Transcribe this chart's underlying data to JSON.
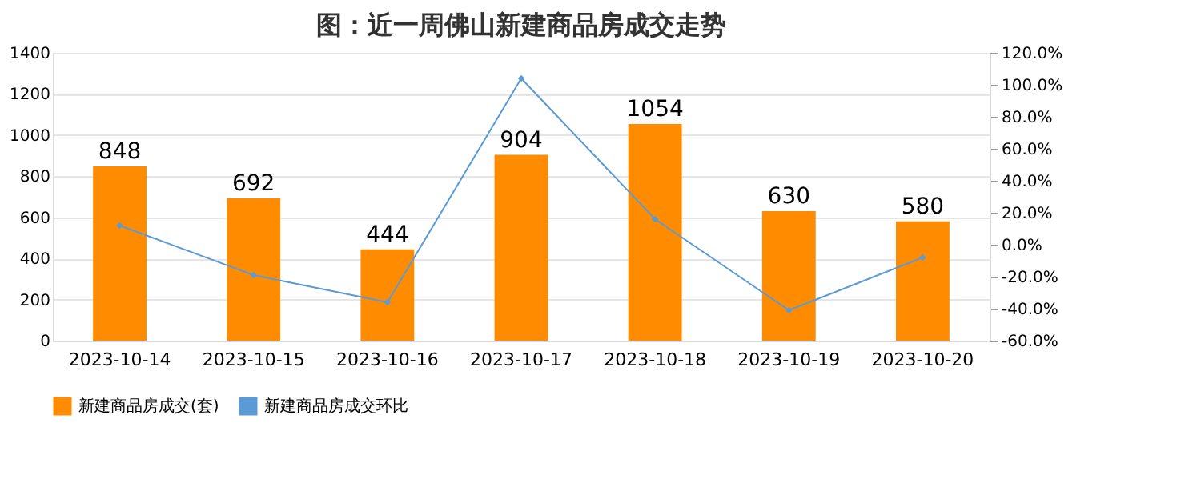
{
  "chart_data": {
    "type": "bar",
    "title": "图：近一周佛山新建商品房成交走势",
    "categories": [
      "2023-10-14",
      "2023-10-15",
      "2023-10-16",
      "2023-10-17",
      "2023-10-18",
      "2023-10-19",
      "2023-10-20"
    ],
    "series": [
      {
        "name": "新建商品房成交(套)",
        "color": "#ff8c00",
        "values": [
          848,
          692,
          444,
          904,
          1054,
          630,
          580
        ],
        "value_labels": [
          "848",
          "692",
          "444",
          "904",
          "1054",
          "630",
          "580"
        ]
      },
      {
        "name": "新建商品房成交环比",
        "type": "line",
        "axis": "y2",
        "color": "#5b9bd5",
        "values": [
          12,
          -19,
          -36,
          104,
          16,
          -41,
          -8
        ]
      }
    ],
    "ylim": [
      0,
      1400
    ],
    "yticks": [
      0,
      200,
      400,
      600,
      800,
      1000,
      1200,
      1400
    ],
    "y2lim": [
      -60,
      120
    ],
    "y2ticks": [
      {
        "value": -60,
        "label": "-60.0%"
      },
      {
        "value": -40,
        "label": "-40.0%"
      },
      {
        "value": -20,
        "label": "-20.0%"
      },
      {
        "value": 0,
        "label": "0.0%"
      },
      {
        "value": 20,
        "label": "20.0%"
      },
      {
        "value": 40,
        "label": "40.0%"
      },
      {
        "value": 60,
        "label": "60.0%"
      },
      {
        "value": 80,
        "label": "80.0%"
      },
      {
        "value": 100,
        "label": "100.0%"
      },
      {
        "value": 120,
        "label": "120.0%"
      }
    ],
    "grid": "y",
    "legend": "bottom",
    "marker": "diamond",
    "line_style": "solid"
  }
}
